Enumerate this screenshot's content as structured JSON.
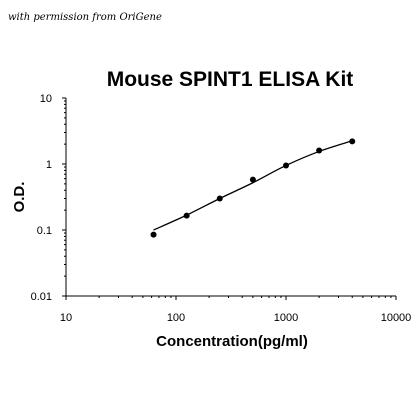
{
  "credit": "with permission from OriGene",
  "chart_data": {
    "type": "scatter",
    "title": "Mouse SPINT1 ELISA Kit",
    "xlabel": "Concentration(pg/ml)",
    "ylabel": "O.D.",
    "x_scale": "log",
    "y_scale": "log",
    "xlim": [
      10,
      10000
    ],
    "ylim": [
      0.01,
      10
    ],
    "x_ticks": [
      "10",
      "100",
      "1000",
      "10000"
    ],
    "y_ticks": [
      "10",
      "1",
      "0.1",
      "0.01"
    ],
    "x_tick_values": [
      10,
      100,
      1000,
      10000
    ],
    "y_tick_values": [
      10,
      1,
      0.1,
      0.01
    ],
    "grid": false,
    "series": [
      {
        "x": [
          62.5,
          125,
          250,
          500,
          1000,
          2000,
          4000
        ],
        "y": [
          0.085,
          0.165,
          0.3,
          0.58,
          0.95,
          1.6,
          2.2
        ]
      }
    ],
    "fit_curve": {
      "x": [
        62.5,
        125,
        250,
        500,
        1000,
        2000,
        4000
      ],
      "y": [
        0.1,
        0.168,
        0.3,
        0.52,
        0.95,
        1.55,
        2.25
      ]
    }
  }
}
